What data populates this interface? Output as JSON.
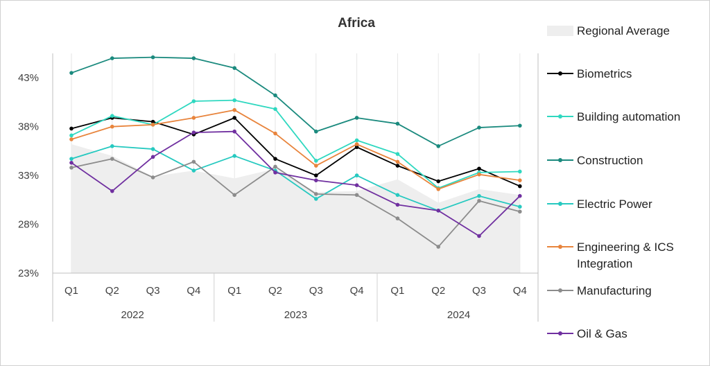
{
  "chart_data": {
    "type": "line",
    "title": "Africa",
    "xlabel": "",
    "ylabel": "",
    "ylim": [
      23,
      45.5
    ],
    "yticks": [
      23,
      28,
      33,
      38,
      43
    ],
    "ytick_labels": [
      "23%",
      "28%",
      "33%",
      "38%",
      "43%"
    ],
    "categories": [
      "Q1",
      "Q2",
      "Q3",
      "Q4",
      "Q1",
      "Q2",
      "Q3",
      "Q4",
      "Q1",
      "Q2",
      "Q3",
      "Q4"
    ],
    "year_groups": [
      {
        "label": "2022",
        "span": 4
      },
      {
        "label": "2023",
        "span": 4
      },
      {
        "label": "2024",
        "span": 4
      }
    ],
    "regional_average": {
      "name": "Regional Average",
      "color": "#eeeeee",
      "values": [
        36.2,
        35.0,
        32.9,
        33.5,
        32.7,
        33.7,
        31.3,
        31.4,
        32.6,
        30.2,
        31.6,
        31.0
      ]
    },
    "series": [
      {
        "name": "Biometrics",
        "color": "#000000",
        "values": [
          37.8,
          38.9,
          38.5,
          37.2,
          38.9,
          34.7,
          33.0,
          35.9,
          34.0,
          32.4,
          33.7,
          31.9
        ]
      },
      {
        "name": "Building automation",
        "color": "#2fd8c0",
        "values": [
          37.1,
          39.1,
          38.2,
          40.6,
          40.7,
          39.8,
          34.5,
          36.6,
          35.2,
          31.7,
          33.3,
          33.4
        ]
      },
      {
        "name": "Construction",
        "color": "#1b8a7e",
        "values": [
          43.5,
          45.0,
          45.1,
          45.0,
          44.0,
          41.2,
          37.5,
          38.9,
          38.3,
          36.0,
          37.9,
          38.1
        ]
      },
      {
        "name": "Electric Power",
        "color": "#26c9c0",
        "values": [
          34.7,
          36.0,
          35.7,
          33.5,
          35.0,
          33.5,
          30.6,
          33.0,
          31.0,
          29.4,
          30.9,
          29.8
        ]
      },
      {
        "name": "Engineering & ICS Integration",
        "color": "#e8843c",
        "values": [
          36.7,
          38.0,
          38.2,
          38.9,
          39.7,
          37.3,
          34.0,
          36.2,
          34.4,
          31.6,
          33.1,
          32.5
        ]
      },
      {
        "name": "Manufacturing",
        "color": "#8c8c8c",
        "values": [
          33.8,
          34.7,
          32.8,
          34.4,
          31.0,
          33.9,
          31.1,
          31.0,
          28.6,
          25.7,
          30.4,
          29.3
        ]
      },
      {
        "name": "Oil & Gas",
        "color": "#7030a0",
        "values": [
          34.3,
          31.4,
          34.9,
          37.4,
          37.5,
          33.3,
          32.5,
          32.0,
          30.0,
          29.4,
          26.8,
          30.9
        ]
      }
    ],
    "legend_position": "right",
    "grid": true
  }
}
